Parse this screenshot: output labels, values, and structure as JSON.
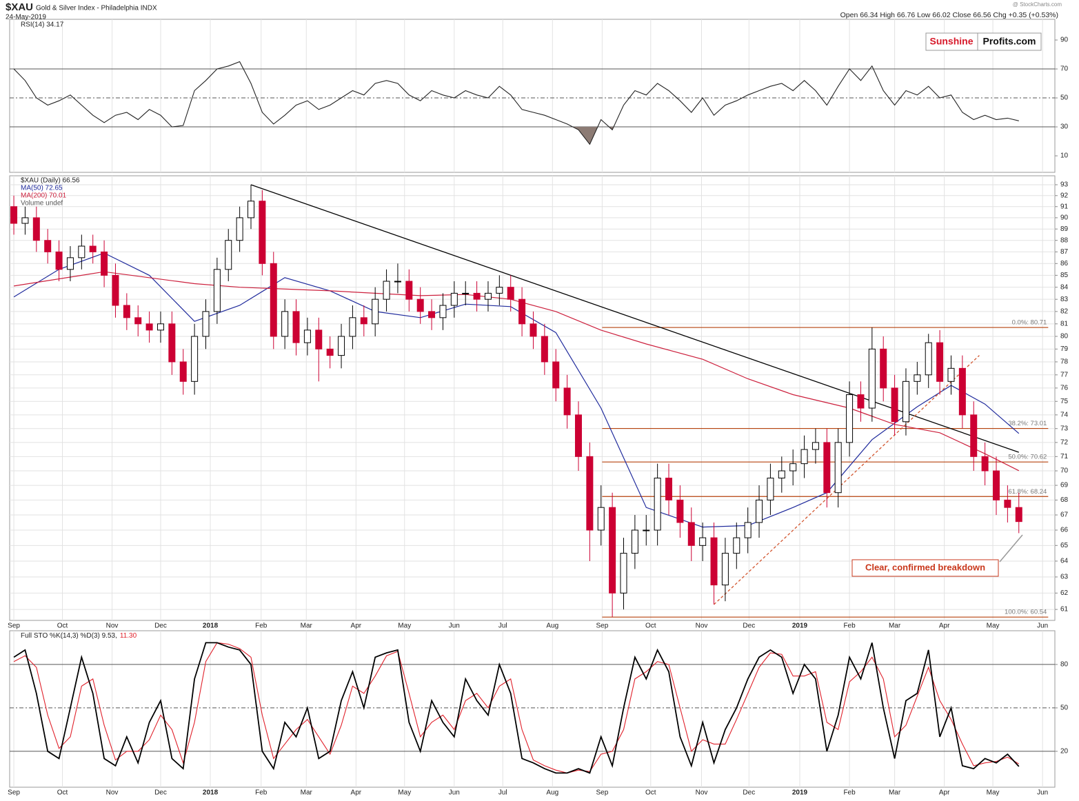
{
  "header": {
    "symbol": "$XAU",
    "name": "Gold & Silver Index - Philadelphia INDX",
    "date": "24-May-2019",
    "stats": "Open 66.34  High 66.76  Low 66.02  Close 66.56  Chg +0.35 (+0.53%)",
    "watermark": "@ StockCharts.com",
    "logo_red": "Sunshine",
    "logo_black": "Profits.com"
  },
  "chart_data": [
    {
      "type": "line",
      "title": "RSI(14) 34.17",
      "ylim": [
        -1.4,
        104.3
      ],
      "yticks": [
        10,
        30,
        50,
        70,
        90
      ],
      "fill_below": 30,
      "fill_color": "#8c7b74",
      "ref_lines": [
        {
          "value": 30,
          "style": "solid"
        },
        {
          "value": 50,
          "style": "dashed"
        },
        {
          "value": 70,
          "style": "solid"
        }
      ],
      "series": [
        {
          "name": "RSI(14)",
          "color": "#222222",
          "values": [
            70,
            62,
            50,
            45,
            48,
            52,
            45,
            38,
            33,
            38,
            40,
            35,
            42,
            38,
            30,
            31,
            55,
            62,
            70,
            72,
            75,
            60,
            40,
            32,
            38,
            45,
            48,
            42,
            45,
            50,
            55,
            52,
            60,
            62,
            60,
            52,
            48,
            55,
            52,
            50,
            55,
            52,
            50,
            58,
            52,
            42,
            40,
            38,
            35,
            32,
            28,
            18,
            35,
            28,
            45,
            55,
            52,
            60,
            55,
            48,
            40,
            50,
            38,
            45,
            48,
            52,
            55,
            58,
            60,
            55,
            62,
            55,
            45,
            58,
            70,
            62,
            72,
            55,
            45,
            55,
            52,
            58,
            50,
            52,
            40,
            35,
            38,
            35,
            36,
            34.17
          ]
        }
      ]
    },
    {
      "type": "candlestick",
      "title": "$XAU (Daily) 66.56",
      "volume": "Volume undef",
      "log_scale": true,
      "grid": true,
      "up_color": "#000000",
      "down_color": "#cc0033",
      "x": [
        0,
        1,
        2,
        3,
        4,
        5,
        6,
        7,
        8,
        9,
        10,
        11,
        12,
        13,
        14,
        15,
        16,
        17,
        18,
        19,
        20,
        21,
        22,
        23,
        24,
        25,
        26,
        27,
        28,
        29,
        30,
        31,
        32,
        33,
        34,
        35,
        36,
        37,
        38,
        39,
        40,
        41,
        42,
        43,
        44,
        45,
        46,
        47,
        48,
        49,
        50,
        51,
        52,
        53,
        54,
        55,
        56,
        57,
        58,
        59,
        60,
        61,
        62,
        63,
        64,
        65,
        66,
        67,
        68,
        69,
        70,
        71,
        72,
        73,
        74,
        75,
        76,
        77,
        78,
        79,
        80,
        81,
        82,
        83,
        84,
        85,
        86,
        87,
        88,
        89
      ],
      "open": [
        91,
        89.5,
        90,
        88,
        87,
        85.5,
        86.5,
        87.5,
        87,
        85,
        82.5,
        81.5,
        81,
        80.5,
        81,
        78,
        76.5,
        80,
        82,
        85.5,
        88,
        90,
        91.5,
        86,
        80,
        82,
        79.5,
        80.5,
        79,
        78.5,
        80,
        81.5,
        81,
        83,
        84.5,
        84.5,
        83,
        82,
        81.5,
        82.5,
        83.5,
        83.5,
        83,
        83.5,
        84,
        83,
        81,
        80,
        78,
        76,
        74,
        71,
        66,
        67.5,
        62,
        64.5,
        66,
        66,
        69.5,
        68,
        66.5,
        65,
        65.5,
        62.5,
        64.5,
        65.5,
        66.5,
        68,
        69.5,
        70,
        70.5,
        71.5,
        72,
        68.5,
        72,
        75.5,
        74.5,
        79,
        76,
        73.5,
        76.5,
        77,
        79.5,
        76.5,
        77.5,
        74,
        71,
        70,
        68,
        67.5
      ],
      "high": [
        92,
        91,
        91,
        89,
        88,
        87.5,
        88.5,
        88.5,
        88,
        86,
        83.5,
        82.5,
        82,
        82,
        82,
        79,
        81,
        83,
        86.5,
        89,
        91,
        93,
        92.5,
        87,
        83,
        83,
        81.5,
        81.5,
        80,
        81,
        82.5,
        82.5,
        84,
        85.5,
        86,
        85.5,
        84,
        83,
        83.5,
        84.5,
        84.5,
        84.5,
        84.5,
        85,
        85,
        84,
        82,
        81,
        79,
        77,
        75,
        72,
        69,
        68.5,
        65.5,
        67,
        67,
        70.5,
        70.5,
        69,
        67.5,
        66.5,
        66.5,
        65.5,
        66.5,
        67.5,
        69,
        70.5,
        71,
        71.5,
        72.5,
        73,
        73,
        73,
        76.5,
        76.5,
        80.71,
        80,
        77,
        77.5,
        78,
        80.2,
        80.5,
        78.5,
        78.5,
        75,
        72,
        71,
        69,
        68.5
      ],
      "low": [
        88.5,
        88.5,
        87,
        86,
        84.5,
        84.5,
        85.5,
        86,
        84,
        81.5,
        80.5,
        80,
        79.5,
        79.5,
        77,
        75.5,
        75.5,
        79,
        81,
        84.5,
        87,
        89,
        85,
        79,
        79,
        78.5,
        78.5,
        76.5,
        77.5,
        77.5,
        79,
        80,
        80,
        82,
        83.5,
        82,
        81,
        80.5,
        80.5,
        81.5,
        82.5,
        82,
        82,
        82.5,
        82,
        80,
        79,
        77,
        75,
        73,
        70,
        64,
        65,
        60.54,
        61,
        63.5,
        65,
        65,
        67,
        65.5,
        64,
        64,
        61.3,
        61.5,
        63.5,
        64.5,
        65.5,
        67,
        68.5,
        69,
        69.5,
        70.5,
        67.5,
        67.5,
        71,
        73.5,
        73.5,
        75,
        72.5,
        72.5,
        75.5,
        76,
        75.5,
        75.5,
        73,
        70,
        69,
        67,
        66.5,
        65.8
      ],
      "close": [
        89.5,
        90,
        88,
        87,
        85.5,
        86.5,
        87.5,
        87,
        85,
        82.5,
        81.5,
        81,
        80.5,
        81,
        78,
        76.5,
        80,
        82,
        85.5,
        88,
        90,
        91.5,
        86,
        80,
        82,
        79.5,
        80.5,
        79,
        78.5,
        80,
        81.5,
        81,
        83,
        84.5,
        84.5,
        83,
        82,
        81.5,
        82.5,
        83.5,
        83.5,
        83,
        83.5,
        84,
        83,
        81,
        80,
        78,
        76,
        74,
        71,
        66,
        67.5,
        62,
        64.5,
        66,
        66,
        69.5,
        68,
        66.5,
        65,
        65.5,
        62.5,
        64.5,
        65.5,
        66.5,
        68,
        69.5,
        70,
        70.5,
        71.5,
        72,
        68.5,
        72,
        75.5,
        74.5,
        79,
        76,
        73.5,
        76.5,
        77,
        79.5,
        76.5,
        77.5,
        74,
        71,
        70,
        68,
        67.5,
        66.56
      ],
      "series": [
        {
          "name": "MA(50) 72.65",
          "color": "#1f2a9c",
          "x": [
            0,
            4,
            8,
            12,
            16,
            20,
            24,
            28,
            32,
            36,
            40,
            44,
            48,
            52,
            56,
            61,
            65,
            69,
            72,
            76,
            80,
            83,
            86,
            89
          ],
          "values": [
            83.2,
            85.5,
            86.9,
            85,
            81.2,
            82.5,
            84.8,
            83.7,
            82,
            81.5,
            82.6,
            82.4,
            80.3,
            74.5,
            67.5,
            66.2,
            66.3,
            67.5,
            68.5,
            72.2,
            74.6,
            76.2,
            74.8,
            72.65
          ]
        },
        {
          "name": "MA(200) 70.01",
          "color": "#cc1f3c",
          "x": [
            0,
            8,
            16,
            20,
            28,
            36,
            40,
            44,
            48,
            52,
            56,
            61,
            65,
            69,
            74,
            78,
            82,
            86,
            89
          ],
          "values": [
            84.1,
            85.3,
            84.3,
            84,
            83.7,
            83.3,
            83.4,
            83,
            82,
            80.5,
            79.4,
            78.2,
            76.7,
            75.5,
            74.5,
            73.3,
            72.7,
            71.2,
            70.01
          ]
        }
      ],
      "xlim": [
        -0.37,
        92.19
      ],
      "xticks": [
        {
          "value": 0,
          "label": "Sep"
        },
        {
          "value": 4.3,
          "label": "Oct"
        },
        {
          "value": 8.7,
          "label": "Nov"
        },
        {
          "value": 13,
          "label": "Dec"
        },
        {
          "value": 17.4,
          "label": "2018"
        },
        {
          "value": 21.9,
          "label": "Feb"
        },
        {
          "value": 25.9,
          "label": "Mar"
        },
        {
          "value": 30.3,
          "label": "Apr"
        },
        {
          "value": 34.6,
          "label": "May"
        },
        {
          "value": 39,
          "label": "Jun"
        },
        {
          "value": 43.3,
          "label": "Jul"
        },
        {
          "value": 47.7,
          "label": "Aug"
        },
        {
          "value": 52.1,
          "label": "Sep"
        },
        {
          "value": 56.4,
          "label": "Oct"
        },
        {
          "value": 60.9,
          "label": "Nov"
        },
        {
          "value": 65.1,
          "label": "Dec"
        },
        {
          "value": 69.6,
          "label": "2019"
        },
        {
          "value": 74,
          "label": "Feb"
        },
        {
          "value": 78,
          "label": "Mar"
        },
        {
          "value": 82.4,
          "label": "Apr"
        },
        {
          "value": 86.7,
          "label": "May"
        },
        {
          "value": 91.1,
          "label": "Jun"
        }
      ],
      "ylim": [
        60.34,
        93.83
      ],
      "yticks": [
        61,
        62,
        63,
        64,
        65,
        66,
        67,
        68,
        69,
        70,
        71,
        72,
        73,
        74,
        75,
        76,
        77,
        78,
        79,
        80,
        81,
        82,
        83,
        84,
        85,
        86,
        87,
        88,
        89,
        90,
        91,
        92,
        93
      ],
      "fib_range_x": [
        52.1,
        91.6
      ],
      "fib_color": "#b5410c",
      "fib_levels": [
        {
          "value": 80.71,
          "label": "0.0%: 80.71"
        },
        {
          "value": 73.01,
          "label": "38.2%: 73.01"
        },
        {
          "value": 70.62,
          "label": "50.0%: 70.62"
        },
        {
          "value": 68.24,
          "label": "61.8%: 68.24"
        },
        {
          "value": 60.54,
          "label": "100.0%: 60.54"
        }
      ],
      "trendlines": [
        {
          "x": [
            21,
            89
          ],
          "values": [
            93,
            71.3
          ],
          "color": "#000000",
          "style": "solid"
        },
        {
          "x": [
            62,
            85.5
          ],
          "values": [
            61.3,
            78.5
          ],
          "color": "#d2552e",
          "style": "dashed"
        }
      ],
      "annotation": "Clear, confirmed breakdown"
    },
    {
      "type": "line",
      "title": "Full STO %K(14,3) %D(3) 9.53,",
      "title_d": "11.30",
      "ylim": [
        -4.8,
        103.3
      ],
      "yticks": [
        20,
        50,
        80
      ],
      "ref_lines": [
        {
          "value": 20,
          "style": "solid"
        },
        {
          "value": 50,
          "style": "dashed"
        },
        {
          "value": 80,
          "style": "solid"
        }
      ],
      "xlim": [
        -0.37,
        92.19
      ],
      "xticks": [
        {
          "value": 0,
          "label": "Sep"
        },
        {
          "value": 4.3,
          "label": "Oct"
        },
        {
          "value": 8.7,
          "label": "Nov"
        },
        {
          "value": 13,
          "label": "Dec"
        },
        {
          "value": 17.4,
          "label": "2018"
        },
        {
          "value": 21.9,
          "label": "Feb"
        },
        {
          "value": 25.9,
          "label": "Mar"
        },
        {
          "value": 30.3,
          "label": "Apr"
        },
        {
          "value": 34.6,
          "label": "May"
        },
        {
          "value": 39,
          "label": "Jun"
        },
        {
          "value": 43.3,
          "label": "Jul"
        },
        {
          "value": 47.7,
          "label": "Aug"
        },
        {
          "value": 52.1,
          "label": "Sep"
        },
        {
          "value": 56.4,
          "label": "Oct"
        },
        {
          "value": 60.9,
          "label": "Nov"
        },
        {
          "value": 65.1,
          "label": "Dec"
        },
        {
          "value": 69.6,
          "label": "2019"
        },
        {
          "value": 74,
          "label": "Feb"
        },
        {
          "value": 78,
          "label": "Mar"
        },
        {
          "value": 82.4,
          "label": "Apr"
        },
        {
          "value": 86.7,
          "label": "May"
        },
        {
          "value": 91.1,
          "label": "Jun"
        }
      ],
      "series": [
        {
          "name": "%D",
          "color": "#e0202a",
          "values": [
            82,
            86,
            78,
            45,
            22,
            30,
            65,
            70,
            38,
            14,
            20,
            20,
            28,
            45,
            35,
            12,
            40,
            82,
            95,
            94,
            91,
            85,
            45,
            15,
            25,
            35,
            42,
            30,
            18,
            38,
            65,
            60,
            72,
            86,
            89,
            60,
            30,
            40,
            45,
            35,
            55,
            60,
            50,
            65,
            70,
            35,
            14,
            10,
            7,
            5,
            7,
            6,
            18,
            20,
            35,
            70,
            75,
            82,
            80,
            50,
            20,
            28,
            25,
            25,
            42,
            60,
            78,
            88,
            87,
            72,
            72,
            75,
            40,
            35,
            68,
            75,
            85,
            70,
            30,
            38,
            58,
            78,
            55,
            42,
            25,
            10,
            12,
            13,
            16,
            11.3
          ]
        },
        {
          "name": "%K",
          "color": "#000000",
          "values": [
            85,
            90,
            60,
            20,
            15,
            50,
            85,
            60,
            15,
            10,
            30,
            12,
            40,
            55,
            15,
            8,
            70,
            95,
            95,
            92,
            90,
            80,
            20,
            8,
            40,
            30,
            50,
            15,
            20,
            55,
            75,
            50,
            85,
            88,
            90,
            40,
            20,
            55,
            40,
            30,
            70,
            55,
            45,
            80,
            60,
            15,
            12,
            8,
            5,
            5,
            8,
            5,
            30,
            10,
            50,
            85,
            70,
            90,
            75,
            30,
            10,
            40,
            12,
            35,
            50,
            70,
            85,
            90,
            85,
            60,
            80,
            70,
            20,
            45,
            85,
            70,
            95,
            50,
            15,
            55,
            60,
            90,
            30,
            50,
            10,
            8,
            15,
            12,
            18,
            9.53
          ]
        }
      ]
    }
  ]
}
